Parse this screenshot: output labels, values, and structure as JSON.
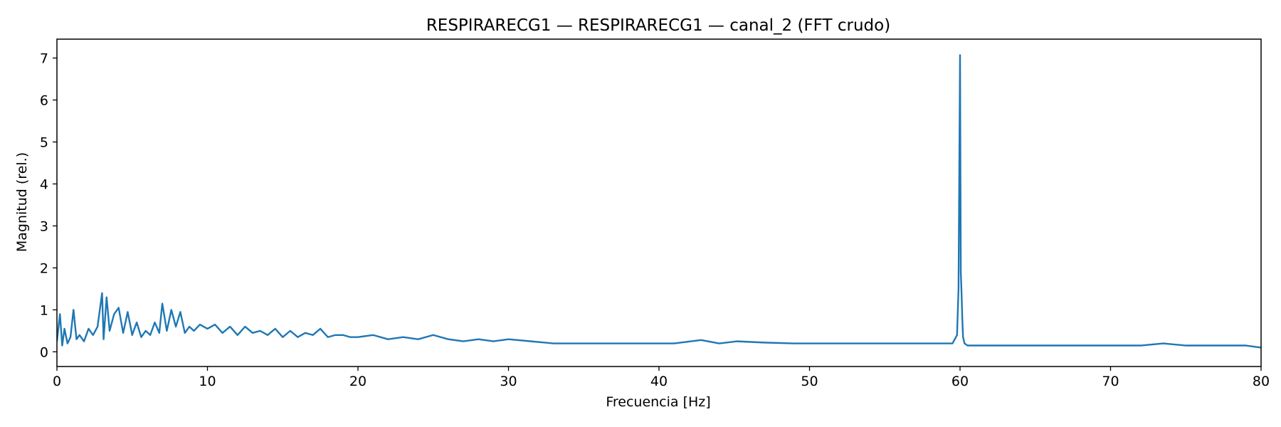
{
  "chart_data": {
    "type": "line",
    "title": "RESPIRARECG1 — RESPIRARECG1 — canal_2 (FFT crudo)",
    "xlabel": "Frecuencia [Hz]",
    "ylabel": "Magnitud (rel.)",
    "xlim": [
      0,
      80
    ],
    "ylim": [
      -0.35,
      7.45
    ],
    "xticks": [
      0,
      10,
      20,
      30,
      40,
      50,
      60,
      70,
      80
    ],
    "yticks": [
      0,
      1,
      2,
      3,
      4,
      5,
      6,
      7
    ],
    "grid": false,
    "legend": "none",
    "colors": {
      "line": "#1f77b4",
      "axes": "#000000",
      "background": "#ffffff"
    },
    "series": [
      {
        "x": [
          0,
          0.2,
          0.35,
          0.5,
          0.7,
          0.9,
          1.1,
          1.3,
          1.5,
          1.8,
          2.1,
          2.4,
          2.7,
          3.0,
          3.1,
          3.3,
          3.5,
          3.8,
          4.1,
          4.4,
          4.7,
          5.0,
          5.3,
          5.6,
          5.9,
          6.2,
          6.5,
          6.8,
          7.0,
          7.3,
          7.6,
          7.9,
          8.2,
          8.5,
          8.8,
          9.1,
          9.5,
          10.0,
          10.5,
          11.0,
          11.5,
          12.0,
          12.5,
          13.0,
          13.5,
          14.0,
          14.5,
          15.0,
          15.5,
          16.0,
          16.5,
          17.0,
          17.5,
          18.0,
          18.5,
          19.0,
          19.5,
          20.0,
          21.0,
          22.0,
          23.0,
          24.0,
          25.0,
          26.0,
          27.0,
          28.0,
          29.0,
          30.0,
          31.5,
          33.0,
          35.0,
          37.0,
          39.0,
          41.0,
          42.8,
          44.0,
          45.2,
          47.0,
          49.0,
          51.0,
          53.0,
          55.0,
          57.0,
          58.5,
          59.5,
          59.8,
          59.9,
          60.0,
          60.05,
          60.1,
          60.15,
          60.2,
          60.3,
          60.5,
          61.0,
          62.0,
          64.0,
          66.0,
          68.0,
          70.0,
          72.0,
          73.5,
          75.0,
          77.0,
          79.0,
          80.0
        ],
        "values": [
          0.25,
          0.9,
          0.15,
          0.55,
          0.2,
          0.35,
          1.0,
          0.3,
          0.4,
          0.25,
          0.55,
          0.4,
          0.6,
          1.4,
          0.3,
          1.3,
          0.5,
          0.9,
          1.05,
          0.45,
          0.95,
          0.4,
          0.7,
          0.35,
          0.5,
          0.4,
          0.7,
          0.45,
          1.15,
          0.5,
          1.0,
          0.6,
          0.95,
          0.45,
          0.6,
          0.5,
          0.65,
          0.55,
          0.65,
          0.45,
          0.6,
          0.4,
          0.6,
          0.45,
          0.5,
          0.4,
          0.55,
          0.35,
          0.5,
          0.35,
          0.45,
          0.4,
          0.55,
          0.35,
          0.4,
          0.4,
          0.35,
          0.35,
          0.4,
          0.3,
          0.35,
          0.3,
          0.4,
          0.3,
          0.25,
          0.3,
          0.25,
          0.3,
          0.25,
          0.2,
          0.2,
          0.2,
          0.2,
          0.2,
          0.28,
          0.2,
          0.25,
          0.22,
          0.2,
          0.2,
          0.2,
          0.2,
          0.2,
          0.2,
          0.2,
          0.4,
          1.5,
          7.07,
          1.9,
          1.4,
          0.8,
          0.35,
          0.2,
          0.15,
          0.15,
          0.15,
          0.15,
          0.15,
          0.15,
          0.15,
          0.15,
          0.2,
          0.15,
          0.15,
          0.15,
          0.1
        ]
      }
    ]
  }
}
